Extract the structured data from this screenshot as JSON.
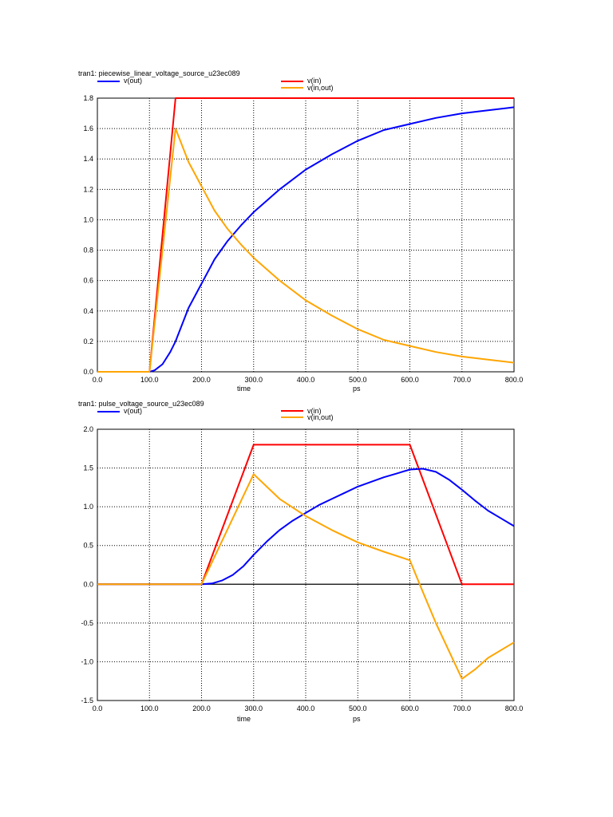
{
  "chart_data": [
    {
      "type": "line",
      "title": "tran1: piecewise_linear_voltage_source_u23ec089",
      "xlabel": "time",
      "xunit": "ps",
      "xlim": [
        0,
        800
      ],
      "ylim": [
        0,
        1.8
      ],
      "xticks": [
        0,
        100,
        200,
        300,
        400,
        500,
        600,
        700,
        800
      ],
      "xtick_labels": [
        "0.0",
        "100.0",
        "200.0",
        "300.0",
        "400.0",
        "500.0",
        "600.0",
        "700.0",
        "800.0"
      ],
      "yticks": [
        0,
        0.2,
        0.4,
        0.6,
        0.8,
        1.0,
        1.2,
        1.4,
        1.6,
        1.8
      ],
      "ytick_labels": [
        "0.0",
        "0.2",
        "0.4",
        "0.6",
        "0.8",
        "1.0",
        "1.2",
        "1.4",
        "1.6",
        "1.8"
      ],
      "grid": true,
      "series": [
        {
          "name": "v(in)",
          "color": "#ff0000",
          "x": [
            0,
            100,
            150,
            800
          ],
          "y": [
            0,
            0,
            1.8,
            1.8
          ]
        },
        {
          "name": "v(out)",
          "color": "#0000ff",
          "x": [
            0,
            100,
            110,
            125,
            140,
            150,
            175,
            200,
            225,
            250,
            275,
            300,
            350,
            400,
            450,
            500,
            550,
            600,
            650,
            700,
            750,
            800
          ],
          "y": [
            0,
            0,
            0.01,
            0.05,
            0.13,
            0.2,
            0.42,
            0.58,
            0.74,
            0.86,
            0.96,
            1.05,
            1.2,
            1.33,
            1.43,
            1.52,
            1.59,
            1.63,
            1.67,
            1.7,
            1.72,
            1.74
          ]
        },
        {
          "name": "v(in,out)",
          "color": "#ffa500",
          "x": [
            0,
            100,
            150,
            175,
            200,
            225,
            250,
            275,
            300,
            350,
            400,
            450,
            500,
            550,
            600,
            650,
            700,
            750,
            800
          ],
          "y": [
            0,
            0,
            1.6,
            1.38,
            1.22,
            1.06,
            0.94,
            0.84,
            0.75,
            0.6,
            0.47,
            0.37,
            0.28,
            0.21,
            0.17,
            0.13,
            0.1,
            0.08,
            0.06
          ]
        }
      ]
    },
    {
      "type": "line",
      "title": "tran1: pulse_voltage_source_u23ec089",
      "xlabel": "time",
      "xunit": "ps",
      "xlim": [
        0,
        800
      ],
      "ylim": [
        -1.5,
        2.0
      ],
      "xticks": [
        0,
        100,
        200,
        300,
        400,
        500,
        600,
        700,
        800
      ],
      "xtick_labels": [
        "0.0",
        "100.0",
        "200.0",
        "300.0",
        "400.0",
        "500.0",
        "600.0",
        "700.0",
        "800.0"
      ],
      "yticks": [
        -1.5,
        -1.0,
        -0.5,
        0,
        0.5,
        1.0,
        1.5,
        2.0
      ],
      "ytick_labels": [
        "-1.5",
        "-1.0",
        "-0.5",
        "0.0",
        "0.5",
        "1.0",
        "1.5",
        "2.0"
      ],
      "grid": true,
      "series": [
        {
          "name": "v(in)",
          "color": "#ff0000",
          "x": [
            0,
            200,
            300,
            600,
            700,
            800
          ],
          "y": [
            0,
            0,
            1.8,
            1.8,
            0,
            0
          ]
        },
        {
          "name": "v(out)",
          "color": "#0000ff",
          "x": [
            0,
            200,
            220,
            240,
            260,
            280,
            300,
            325,
            350,
            375,
            400,
            425,
            450,
            475,
            500,
            525,
            550,
            575,
            600,
            625,
            650,
            675,
            700,
            725,
            750,
            775,
            800
          ],
          "y": [
            0,
            0,
            0.01,
            0.05,
            0.12,
            0.23,
            0.38,
            0.55,
            0.7,
            0.82,
            0.92,
            1.02,
            1.1,
            1.18,
            1.26,
            1.32,
            1.38,
            1.43,
            1.48,
            1.49,
            1.45,
            1.35,
            1.22,
            1.08,
            0.95,
            0.85,
            0.75
          ]
        },
        {
          "name": "v(in,out)",
          "color": "#ffa500",
          "x": [
            0,
            200,
            300,
            350,
            400,
            450,
            500,
            550,
            600,
            625,
            650,
            700,
            725,
            750,
            800
          ],
          "y": [
            0,
            0,
            1.42,
            1.1,
            0.88,
            0.7,
            0.54,
            0.42,
            0.31,
            -0.1,
            -0.5,
            -1.22,
            -1.1,
            -0.95,
            -0.75
          ]
        }
      ]
    }
  ]
}
